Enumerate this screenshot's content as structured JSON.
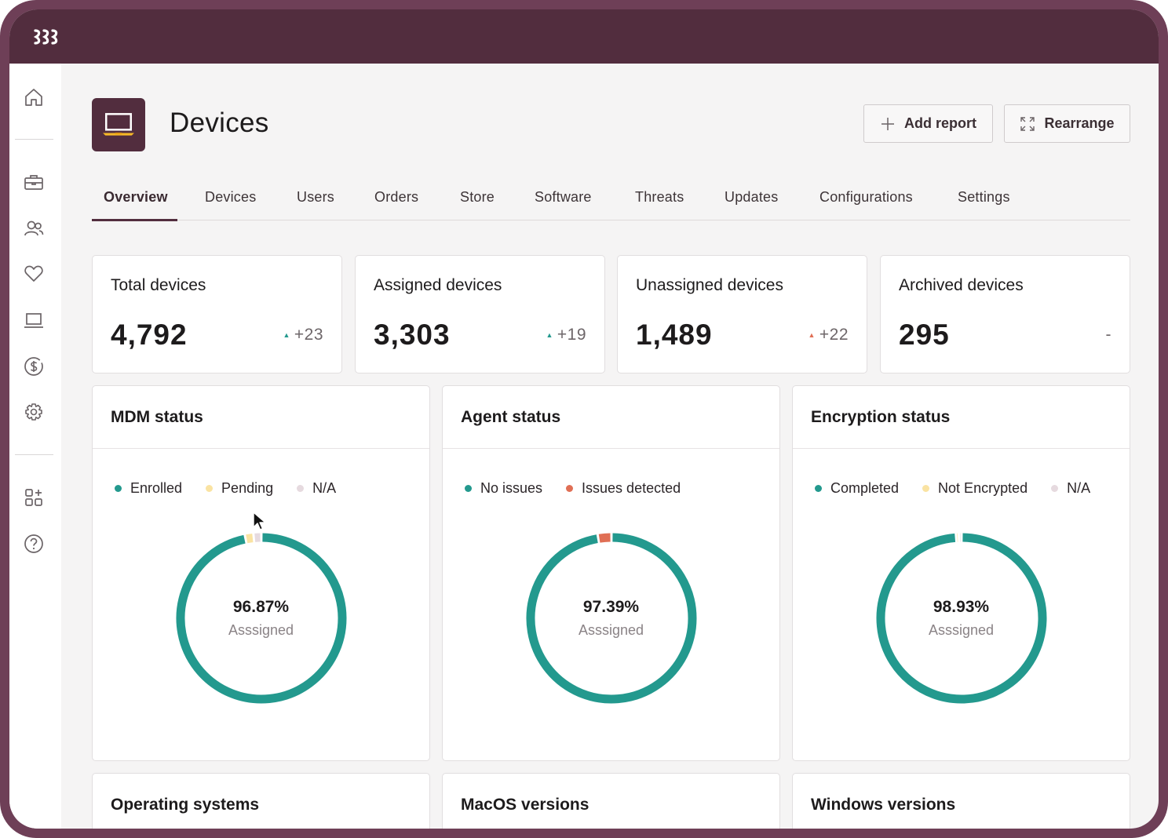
{
  "colors": {
    "frame": "#6e3f57",
    "topbar": "#522d3e",
    "accent_teal": "#23998e",
    "pending_yellow": "#fae3a2",
    "na_grey": "#e6dadf",
    "issues_orange": "#e06f55"
  },
  "topbar": {
    "logo_icon": "brand-logo-icon"
  },
  "sidebar": {
    "items": [
      {
        "icon": "home-icon"
      },
      {
        "icon": "toolbox-icon"
      },
      {
        "icon": "users-icon"
      },
      {
        "icon": "heart-icon"
      },
      {
        "icon": "laptop-icon"
      },
      {
        "icon": "dollar-circle-icon"
      },
      {
        "icon": "gear-icon"
      },
      {
        "icon": "apps-add-icon"
      },
      {
        "icon": "help-circle-icon"
      }
    ]
  },
  "header": {
    "title": "Devices",
    "icon": "laptop-icon",
    "add_report_label": "Add report",
    "rearrange_label": "Rearrange"
  },
  "tabs": [
    {
      "label": "Overview",
      "active": true
    },
    {
      "label": "Devices"
    },
    {
      "label": "Users"
    },
    {
      "label": "Orders"
    },
    {
      "label": "Store"
    },
    {
      "label": "Software"
    },
    {
      "label": "Threats"
    },
    {
      "label": "Updates"
    },
    {
      "label": "Configurations"
    },
    {
      "label": "Settings"
    }
  ],
  "stats": [
    {
      "label": "Total devices",
      "value": "4,792",
      "delta": "+23",
      "delta_color": "#23998e"
    },
    {
      "label": "Assigned devices",
      "value": "3,303",
      "delta": "+19",
      "delta_color": "#23998e"
    },
    {
      "label": "Unassigned devices",
      "value": "1,489",
      "delta": "+22",
      "delta_color": "#e06f55"
    },
    {
      "label": "Archived devices",
      "value": "295",
      "delta": "-"
    }
  ],
  "cards": [
    {
      "title": "MDM status",
      "legend": [
        {
          "label": "Enrolled",
          "color": "#23998e"
        },
        {
          "label": "Pending",
          "color": "#fae3a2"
        },
        {
          "label": "N/A",
          "color": "#e6dadf"
        }
      ],
      "segments": [
        96.87,
        1.63,
        1.5
      ],
      "percent": "96.87%",
      "sub": "Asssigned"
    },
    {
      "title": "Agent status",
      "legend": [
        {
          "label": "No issues",
          "color": "#23998e"
        },
        {
          "label": "Issues detected",
          "color": "#e06f55"
        }
      ],
      "segments": [
        97.39,
        2.61
      ],
      "percent": "97.39%",
      "sub": "Asssigned"
    },
    {
      "title": "Encryption status",
      "legend": [
        {
          "label": "Completed",
          "color": "#23998e"
        },
        {
          "label": "Not Encrypted",
          "color": "#fae3a2"
        },
        {
          "label": "N/A",
          "color": "#e6dadf"
        }
      ],
      "segments": [
        98.93,
        0.54,
        0.53
      ],
      "percent": "98.93%",
      "sub": "Asssigned"
    }
  ],
  "bottom_cards": [
    {
      "title": "Operating systems"
    },
    {
      "title": "MacOS versions"
    },
    {
      "title": "Windows versions"
    }
  ]
}
